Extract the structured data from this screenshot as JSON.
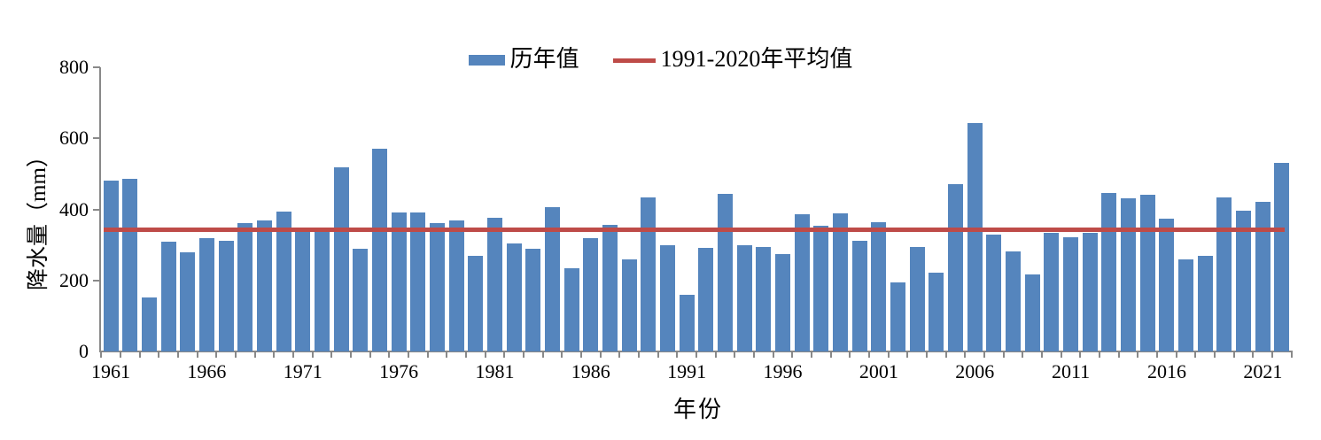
{
  "chart_data": {
    "type": "bar",
    "title": "",
    "xlabel": "年份",
    "ylabel": "降水量（mm）",
    "ylim": [
      0,
      800
    ],
    "yticks": [
      0,
      200,
      400,
      600,
      800
    ],
    "xtick_years": [
      1961,
      1966,
      1971,
      1976,
      1981,
      1986,
      1991,
      1996,
      2001,
      2006,
      2011,
      2016,
      2021
    ],
    "categories": [
      1961,
      1962,
      1963,
      1964,
      1965,
      1966,
      1967,
      1968,
      1969,
      1970,
      1971,
      1972,
      1973,
      1974,
      1975,
      1976,
      1977,
      1978,
      1979,
      1980,
      1981,
      1982,
      1983,
      1984,
      1985,
      1986,
      1987,
      1988,
      1989,
      1990,
      1991,
      1992,
      1993,
      1994,
      1995,
      1996,
      1997,
      1998,
      1999,
      2000,
      2001,
      2002,
      2003,
      2004,
      2005,
      2006,
      2007,
      2008,
      2009,
      2010,
      2011,
      2012,
      2013,
      2014,
      2015,
      2016,
      2017,
      2018,
      2019,
      2020,
      2021,
      2022
    ],
    "series": [
      {
        "name": "历年值",
        "type": "bar",
        "color": "#5585BD",
        "values": [
          482,
          487,
          152,
          308,
          278,
          318,
          312,
          361,
          369,
          395,
          341,
          341,
          518,
          290,
          570,
          391,
          391,
          362,
          369,
          270,
          376,
          305,
          289,
          407,
          235,
          320,
          356,
          260,
          433,
          298,
          160,
          292,
          443,
          300,
          295,
          275,
          386,
          355,
          390,
          312,
          365,
          194,
          295,
          223,
          471,
          643,
          328,
          282,
          218,
          333,
          322,
          334,
          445,
          431,
          440,
          373,
          260,
          268,
          433,
          396,
          422,
          531
        ]
      },
      {
        "name": "1991-2020年平均值",
        "type": "line",
        "color": "#BE4B48",
        "value": 343
      }
    ],
    "legend_position": "top",
    "grid": false,
    "background": "#FFFFFF",
    "axis_color": "#898989"
  }
}
